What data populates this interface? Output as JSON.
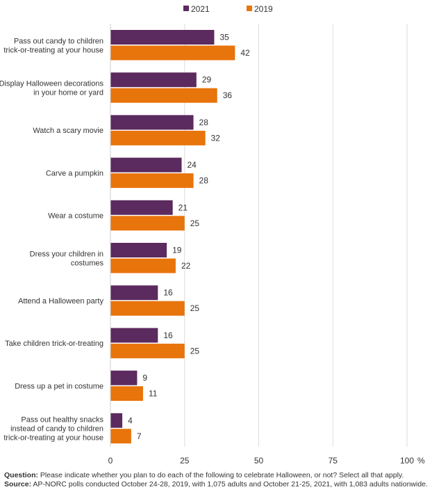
{
  "chart_data": {
    "type": "bar",
    "orientation": "horizontal",
    "categories": [
      [
        "Pass out candy to children",
        "trick-or-treating at your house"
      ],
      [
        "Display Halloween decorations",
        "in your home or yard"
      ],
      [
        "Watch a scary movie"
      ],
      [
        "Carve a pumpkin"
      ],
      [
        "Wear a costume"
      ],
      [
        "Dress your children in",
        "costumes"
      ],
      [
        "Attend a Halloween party"
      ],
      [
        "Take children trick-or-treating"
      ],
      [
        "Dress up a pet in costume"
      ],
      [
        "Pass out healthy snacks",
        "instead of candy to children",
        "trick-or-treating at your house"
      ]
    ],
    "series": [
      {
        "name": "2021",
        "color": "#5b2a5e",
        "values": [
          35,
          29,
          28,
          24,
          21,
          19,
          16,
          16,
          9,
          4
        ]
      },
      {
        "name": "2019",
        "color": "#e8740c",
        "values": [
          42,
          36,
          32,
          28,
          25,
          22,
          25,
          25,
          11,
          7
        ]
      }
    ],
    "xlim": [
      0,
      100
    ],
    "xticks": [
      "0",
      "25",
      "50",
      "75",
      "100"
    ],
    "x_unit": "%",
    "grid": true,
    "legend_position": "top"
  },
  "footnote": {
    "question_label": "Question:",
    "question_text": " Please indicate whether you plan to do each of the following to celebrate Halloween, or not? Select all that apply.",
    "source_label": "Source:",
    "source_text": " AP-NORC polls conducted October 24-28, 2019, with 1,075 adults and October 21-25, 2021, with 1,083 adults nationwide."
  }
}
